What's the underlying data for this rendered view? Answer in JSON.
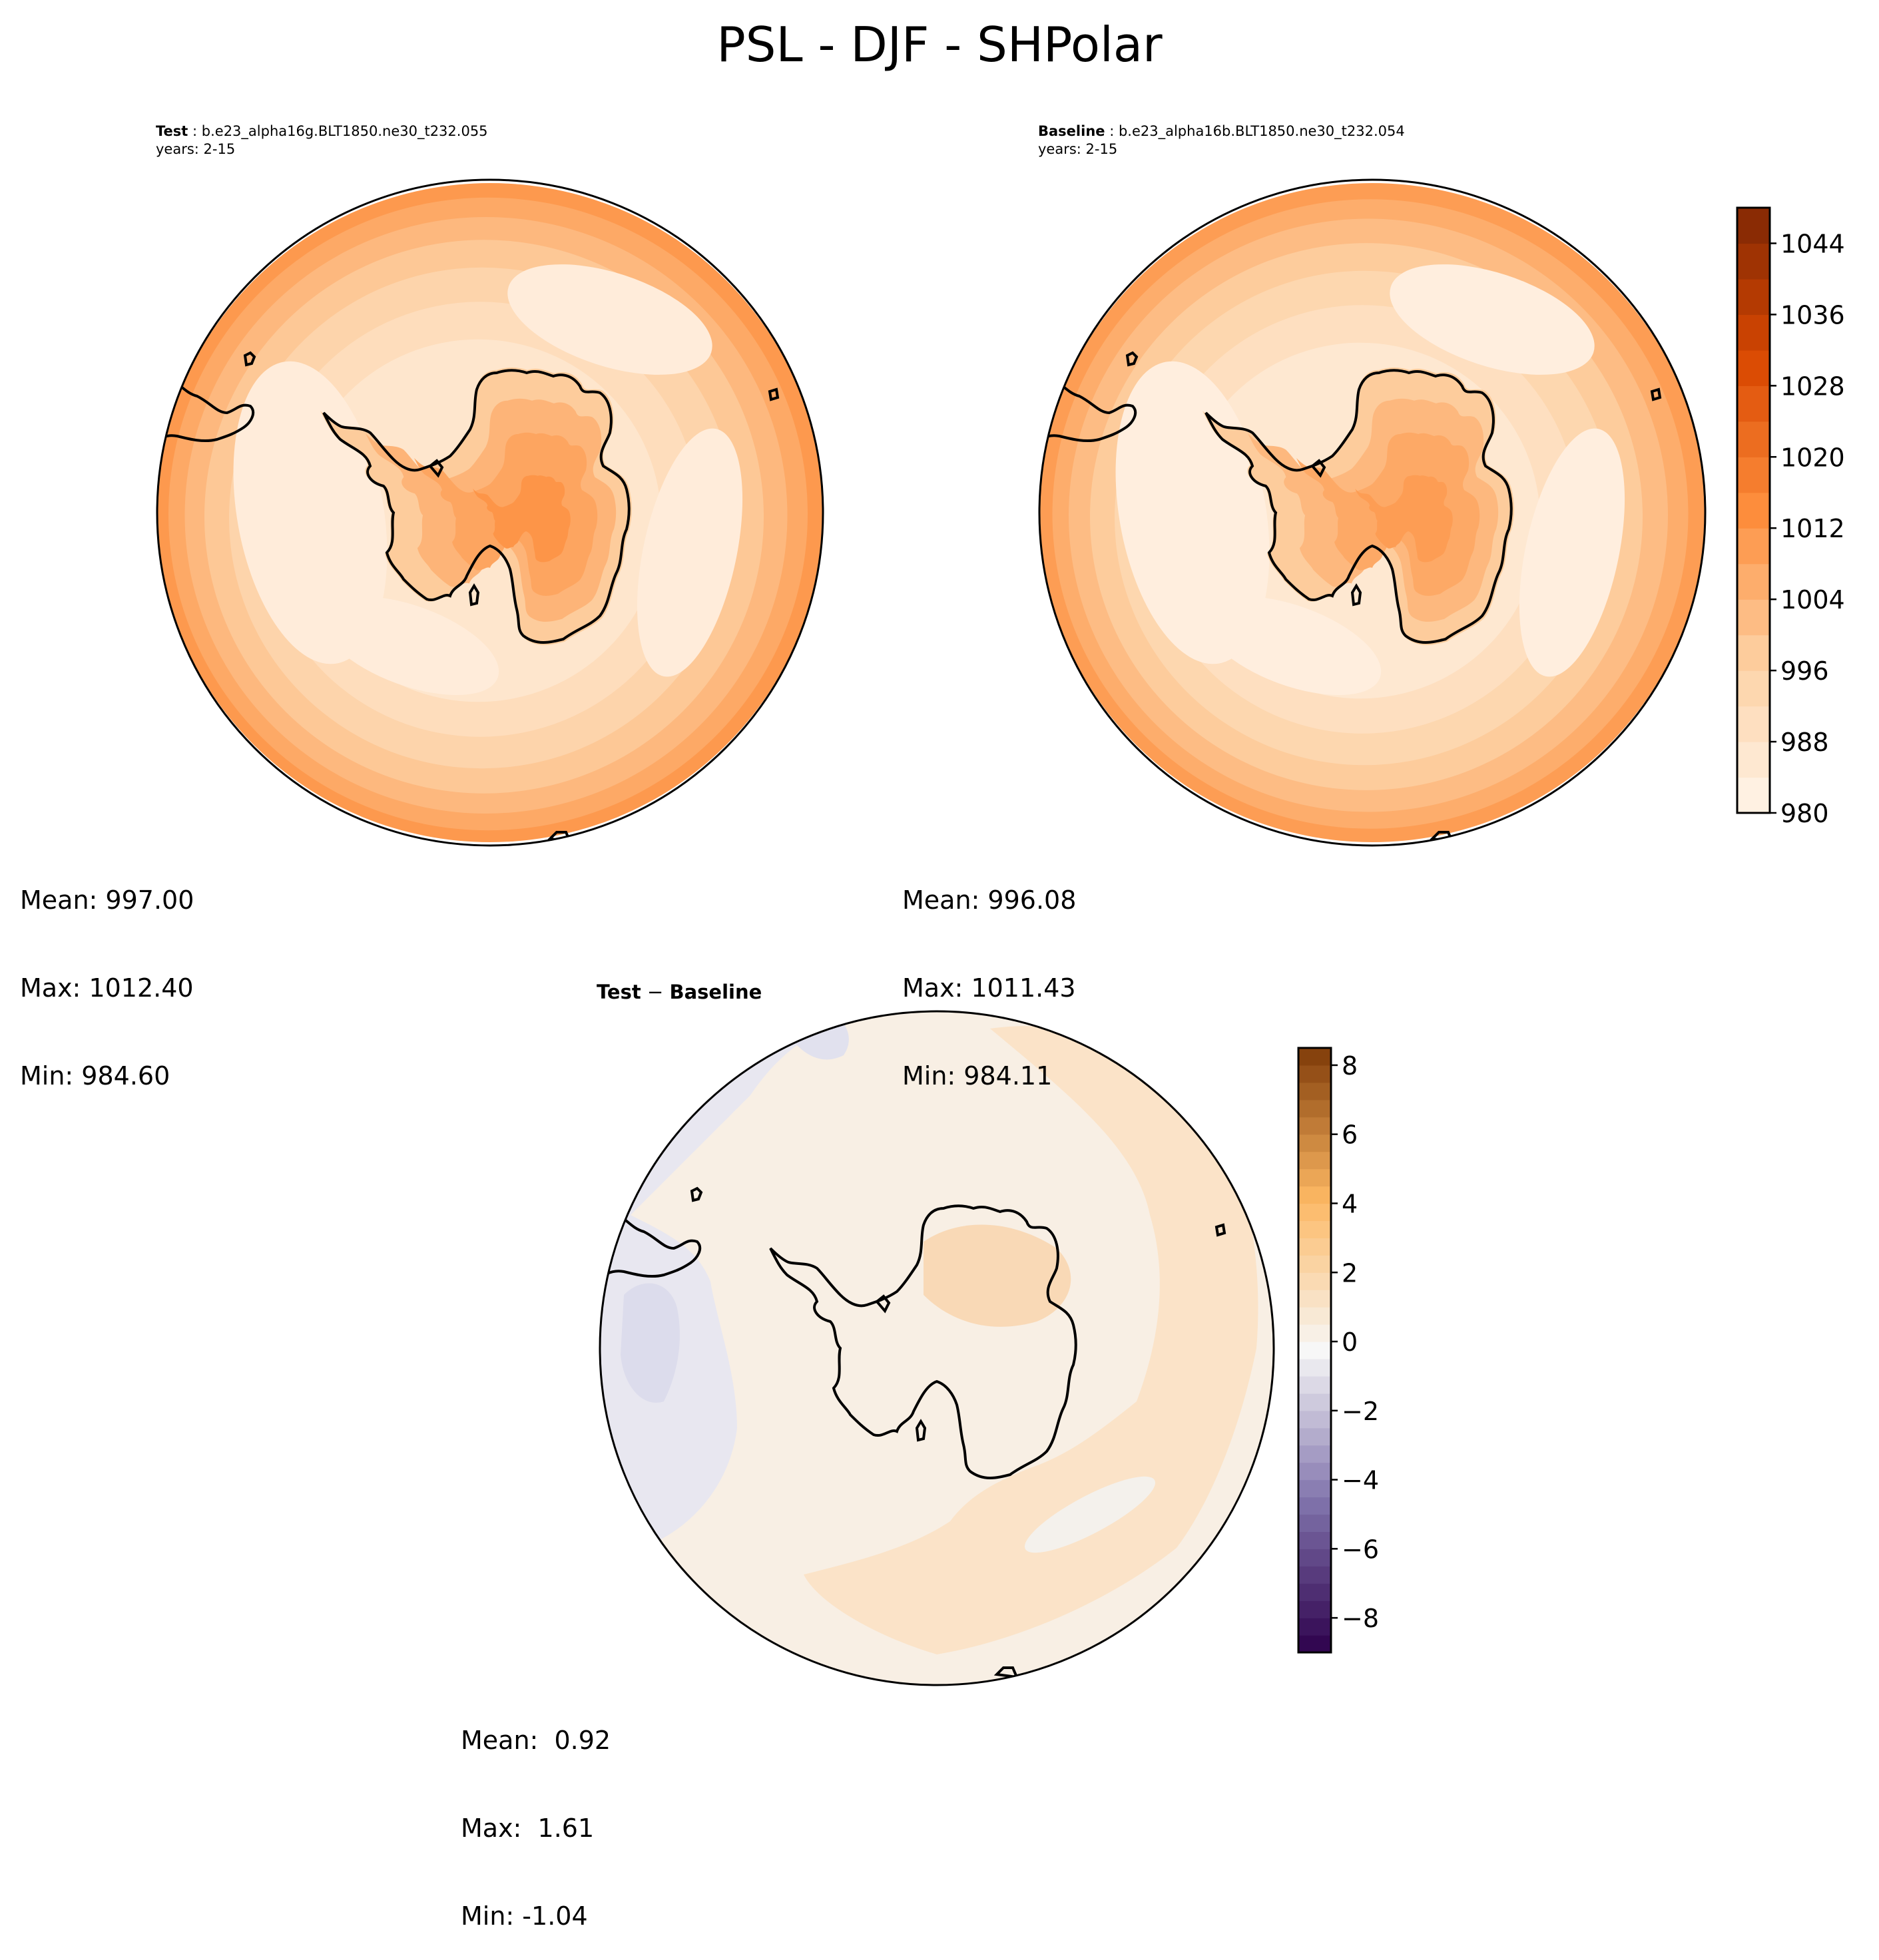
{
  "figure": {
    "title": "PSL - DJF - SHPolar"
  },
  "panels": {
    "test": {
      "label": "Test",
      "case": "b.e23_alpha16g.BLT1850.ne30_t232.055",
      "years": "years: 2-15",
      "stats": {
        "mean": "Mean: 997.00",
        "max": "Max: 1012.40",
        "min": "Min: 984.60"
      }
    },
    "baseline": {
      "label": "Baseline",
      "case": "b.e23_alpha16b.BLT1850.ne30_t232.054",
      "years": "years: 2-15",
      "stats": {
        "mean": "Mean: 996.08",
        "max": "Max: 1011.43",
        "min": "Min: 984.11"
      }
    },
    "diff": {
      "label_a": "Test",
      "sep": " − ",
      "label_b": "Baseline",
      "stats": {
        "mean": "Mean:  0.92",
        "max": "Max:  1.61",
        "min": "Min: -1.04"
      }
    }
  },
  "chart_data": [
    {
      "type": "heatmap",
      "projection": "south-polar-stereographic",
      "field": "PSL",
      "panel": "test",
      "colorbar": {
        "ticks": [
          980,
          988,
          996,
          1004,
          1012,
          1020,
          1028,
          1036,
          1044
        ],
        "range": [
          980,
          1048
        ],
        "step": 4,
        "colormap": "Oranges"
      },
      "rings": [
        {
          "band": 1011,
          "r": 1.0
        },
        {
          "band": 1007,
          "r": 0.96
        },
        {
          "band": 1003,
          "r": 0.905
        },
        {
          "band": 999,
          "r": 0.84
        },
        {
          "band": 995,
          "r": 0.76
        },
        {
          "band": 991,
          "r": 0.66
        },
        {
          "band": 987,
          "r": 0.55
        }
      ],
      "continent_bands": [
        998,
        1004,
        1008,
        1012
      ],
      "mean": 997.0,
      "max": 1012.4,
      "min": 984.6
    },
    {
      "type": "heatmap",
      "projection": "south-polar-stereographic",
      "field": "PSL",
      "panel": "baseline",
      "colorbar": {
        "ticks": [
          980,
          988,
          996,
          1004,
          1012,
          1020,
          1028,
          1036,
          1044
        ],
        "range": [
          980,
          1048
        ],
        "step": 4,
        "colormap": "Oranges"
      },
      "rings": [
        {
          "band": 1010,
          "r": 1.0
        },
        {
          "band": 1006,
          "r": 0.955
        },
        {
          "band": 1002,
          "r": 0.9
        },
        {
          "band": 998,
          "r": 0.83
        },
        {
          "band": 994,
          "r": 0.75
        },
        {
          "band": 990,
          "r": 0.65
        },
        {
          "band": 986,
          "r": 0.54
        }
      ],
      "continent_bands": [
        998,
        1003,
        1007,
        1010
      ],
      "mean": 996.08,
      "max": 1011.43,
      "min": 984.11
    },
    {
      "type": "heatmap",
      "projection": "south-polar-stereographic",
      "field": "PSL difference",
      "panel": "diff",
      "colorbar": {
        "ticks": [
          -8,
          -6,
          -4,
          -2,
          0,
          2,
          4,
          6,
          8
        ],
        "range": [
          -9,
          8.5
        ],
        "step": 0.5,
        "colormap": "PuOr_r"
      },
      "mean": 0.92,
      "max": 1.61,
      "min": -1.04
    }
  ]
}
